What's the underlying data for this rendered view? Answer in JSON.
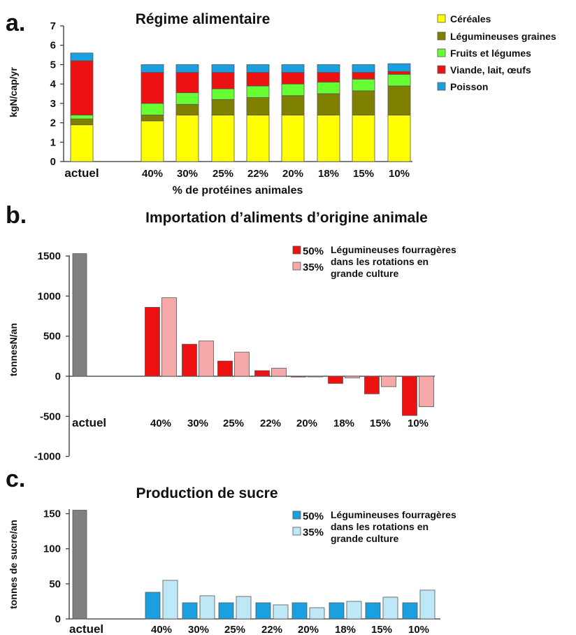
{
  "panels": [
    {
      "panel_letter": "a.",
      "chart_data": {
        "type": "bar",
        "stacked": true,
        "title": "Régime alimentaire",
        "xlabel": "% de protéines animales",
        "ylabel": "kgN/cap/yr",
        "ylim": [
          0,
          7
        ],
        "yticks": [
          0,
          1,
          2,
          3,
          4,
          5,
          6,
          7
        ],
        "grid": false,
        "legend_position": "right",
        "categories": [
          "actuel",
          "40%",
          "30%",
          "25%",
          "22%",
          "20%",
          "18%",
          "15%",
          "10%"
        ],
        "series": [
          {
            "name": "Céréales",
            "color": "#ffff00",
            "values": [
              1.9,
              2.1,
              2.4,
              2.4,
              2.4,
              2.4,
              2.4,
              2.4,
              2.4
            ]
          },
          {
            "name": "Légumineuses graines",
            "color": "#808000",
            "values": [
              0.3,
              0.3,
              0.55,
              0.8,
              0.9,
              1.0,
              1.1,
              1.25,
              1.5
            ]
          },
          {
            "name": "Fruits et légumes",
            "color": "#66ff33",
            "values": [
              0.2,
              0.6,
              0.6,
              0.55,
              0.6,
              0.6,
              0.6,
              0.6,
              0.6
            ]
          },
          {
            "name": "Viande, lait, œufs",
            "color": "#ee1111",
            "values": [
              2.8,
              1.6,
              1.05,
              0.85,
              0.7,
              0.6,
              0.5,
              0.35,
              0.15
            ]
          },
          {
            "name": "Poisson",
            "color": "#1aa0e0",
            "values": [
              0.4,
              0.4,
              0.4,
              0.4,
              0.4,
              0.4,
              0.4,
              0.4,
              0.4
            ]
          }
        ]
      }
    },
    {
      "panel_letter": "b.",
      "chart_data": {
        "type": "bar",
        "title": "Importation d’aliments d’origine animale",
        "xlabel": "",
        "ylabel": "tonnesN/an",
        "ylim": [
          -1000,
          1500
        ],
        "yticks": [
          -1000,
          -500,
          0,
          500,
          1000,
          1500
        ],
        "grid": false,
        "legend_position": "top-right",
        "legend_note": "Légumineuses fourragères dans les rotations en grande culture",
        "categories": [
          "actuel",
          "40%",
          "30%",
          "25%",
          "22%",
          "20%",
          "18%",
          "15%",
          "10%"
        ],
        "baseline": {
          "category": "actuel",
          "value": 1530,
          "color": "#808080"
        },
        "series": [
          {
            "name": "50%",
            "color": "#ee1111",
            "values": [
              null,
              860,
              400,
              190,
              70,
              -10,
              -90,
              -220,
              -490
            ]
          },
          {
            "name": "35%",
            "color": "#f7a8a8",
            "values": [
              null,
              980,
              440,
              300,
              100,
              0,
              -20,
              -130,
              -380
            ]
          }
        ]
      }
    },
    {
      "panel_letter": "c.",
      "chart_data": {
        "type": "bar",
        "title": "Production de sucre",
        "xlabel": "",
        "ylabel": "tonnes de sucre/an",
        "ylim": [
          0,
          150
        ],
        "yticks": [
          0,
          50,
          100,
          150
        ],
        "grid": false,
        "legend_position": "top-right",
        "legend_note": "Légumineuses fourragères dans les rotations en grande culture",
        "categories": [
          "actuel",
          "40%",
          "30%",
          "25%",
          "22%",
          "20%",
          "18%",
          "15%",
          "10%"
        ],
        "baseline": {
          "category": "actuel",
          "value": 155,
          "color": "#808080"
        },
        "series": [
          {
            "name": "50%",
            "color": "#1aa0e0",
            "values": [
              null,
              38,
              23,
              23,
              23,
              23,
              23,
              23,
              23
            ]
          },
          {
            "name": "35%",
            "color": "#bfe8f7",
            "values": [
              null,
              55,
              33,
              32,
              20,
              16,
              25,
              31,
              41
            ]
          }
        ]
      }
    }
  ]
}
